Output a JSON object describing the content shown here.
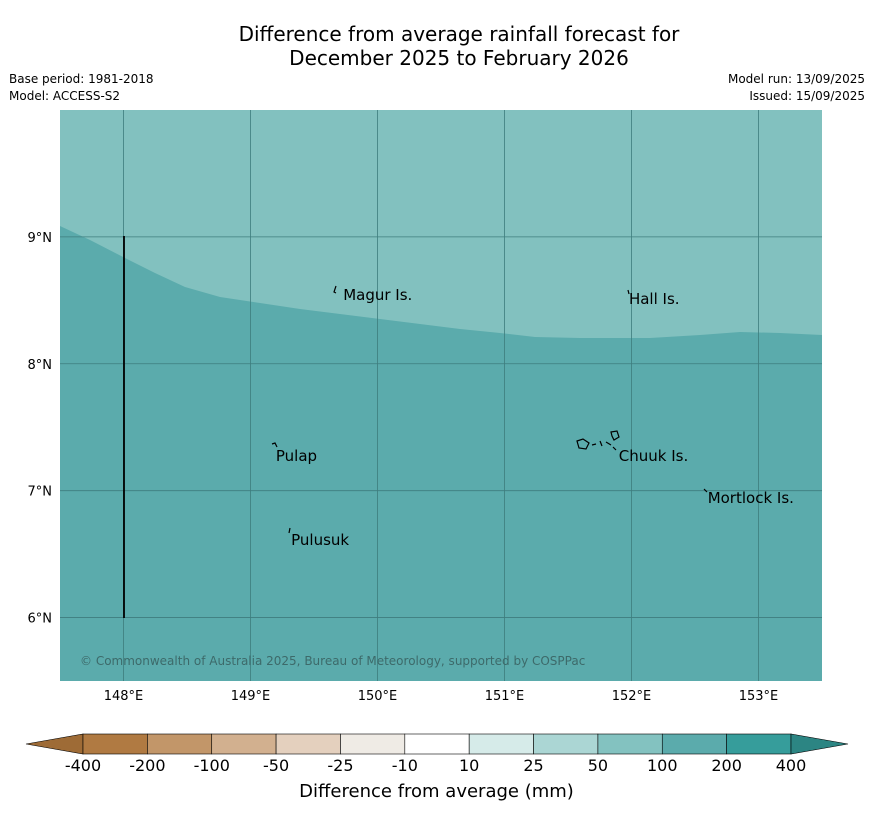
{
  "title_line1": "Difference from average rainfall forecast for",
  "title_line2": "December 2025 to February 2026",
  "base_period": "Base period: 1981-2018",
  "model": "Model: ACCESS-S2",
  "model_run": "Model run: 13/09/2025",
  "issued": "Issued: 15/09/2025",
  "copyright": "© Commonwealth of Australia 2025, Bureau of Meteorology, supported by COSPPac",
  "colors": {
    "ocean_upper": "#82c1bf",
    "ocean_lower": "#5babac",
    "grid": "#3e7d7e"
  },
  "lat_labels": [
    "9°N",
    "8°N",
    "7°N",
    "6°N"
  ],
  "lon_labels": [
    "148°E",
    "149°E",
    "150°E",
    "151°E",
    "152°E",
    "153°E"
  ],
  "places": [
    {
      "name": "Magur Is.",
      "lon": 149.73,
      "lat": 8.55
    },
    {
      "name": "Hall Is.",
      "lon": 151.98,
      "lat": 8.52
    },
    {
      "name": "Pulap",
      "lon": 149.2,
      "lat": 7.28
    },
    {
      "name": "Chuuk Is.",
      "lon": 151.9,
      "lat": 7.28
    },
    {
      "name": "Mortlock Is.",
      "lon": 152.6,
      "lat": 6.95
    },
    {
      "name": "Pulusuk",
      "lon": 149.32,
      "lat": 6.62
    }
  ],
  "colorbar": {
    "ticks": [
      "-400",
      "-200",
      "-100",
      "-50",
      "-25",
      "-10",
      "10",
      "25",
      "50",
      "100",
      "200",
      "400"
    ],
    "colors": [
      "#b07a42",
      "#c29669",
      "#d2b08f",
      "#e4d0be",
      "#efebe5",
      "#ffffff",
      "#d6ebe9",
      "#abd6d4",
      "#83c2c0",
      "#5babac",
      "#369d9b"
    ],
    "under_color": "#9e6b36",
    "over_color": "#2c8583",
    "label": "Difference from average (mm)"
  }
}
